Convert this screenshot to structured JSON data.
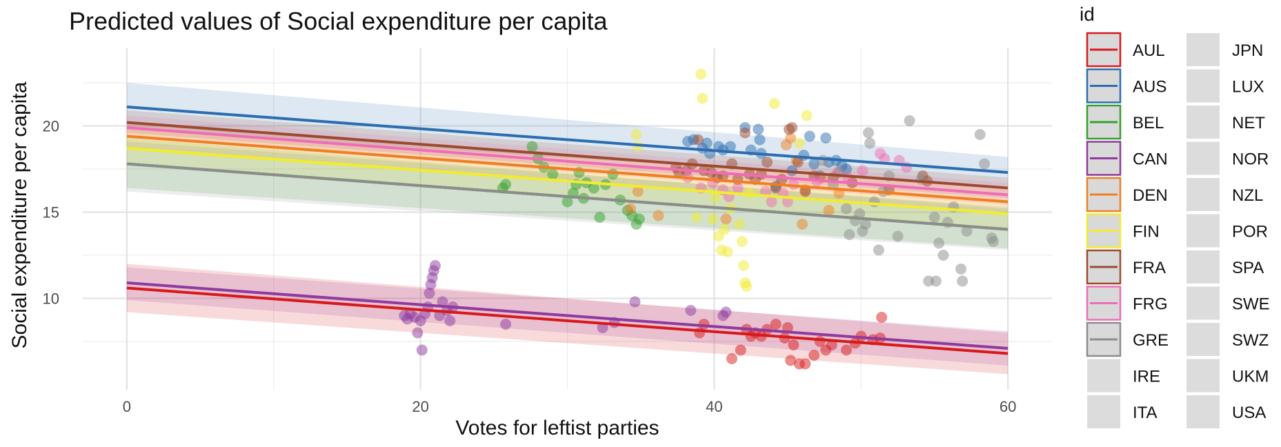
{
  "chart_data": {
    "type": "scatter",
    "title": "Predicted values of Social expenditure per capita",
    "xlabel": "Votes for leftist parties",
    "ylabel": "Social expenditure per capita",
    "xlim": [
      -3,
      63
    ],
    "ylim": [
      4.7,
      24.5
    ],
    "x_ticks": [
      0,
      20,
      40,
      60
    ],
    "y_ticks": [
      10,
      15,
      20
    ],
    "grid": true,
    "legend_title": "id",
    "legend_position": "right",
    "legend": [
      {
        "label": "AUL",
        "color": "#D7191C",
        "line": true
      },
      {
        "label": "AUS",
        "color": "#2C6DB0",
        "line": true
      },
      {
        "label": "BEL",
        "color": "#33A02C",
        "line": true
      },
      {
        "label": "CAN",
        "color": "#8E3A9E",
        "line": true
      },
      {
        "label": "DEN",
        "color": "#F07F22",
        "line": true
      },
      {
        "label": "FIN",
        "color": "#F2EC2E",
        "line": true
      },
      {
        "label": "FRA",
        "color": "#9C4A2E",
        "line": true
      },
      {
        "label": "FRG",
        "color": "#EE6DB4",
        "line": true
      },
      {
        "label": "GRE",
        "color": "#8C8C8C",
        "line": true
      },
      {
        "label": "IRE",
        "color": "#dcdcdc",
        "line": false
      },
      {
        "label": "ITA",
        "color": "#dcdcdc",
        "line": false
      },
      {
        "label": "JPN",
        "color": "#dcdcdc",
        "line": false
      },
      {
        "label": "LUX",
        "color": "#dcdcdc",
        "line": false
      },
      {
        "label": "NET",
        "color": "#dcdcdc",
        "line": false
      },
      {
        "label": "NOR",
        "color": "#dcdcdc",
        "line": false
      },
      {
        "label": "NZL",
        "color": "#dcdcdc",
        "line": false
      },
      {
        "label": "POR",
        "color": "#dcdcdc",
        "line": false
      },
      {
        "label": "SPA",
        "color": "#dcdcdc",
        "line": false
      },
      {
        "label": "SWE",
        "color": "#dcdcdc",
        "line": false
      },
      {
        "label": "SWZ",
        "color": "#dcdcdc",
        "line": false
      },
      {
        "label": "UKM",
        "color": "#dcdcdc",
        "line": false
      },
      {
        "label": "USA",
        "color": "#dcdcdc",
        "line": false
      }
    ],
    "series": [
      {
        "name": "AUL",
        "color": "#D7191C",
        "line": [
          [
            0,
            10.6
          ],
          [
            60,
            6.8
          ]
        ],
        "band": [
          [
            0,
            9.2,
            12.0
          ],
          [
            60,
            5.6,
            8.0
          ]
        ],
        "points": [
          [
            39,
            8.0
          ],
          [
            39.3,
            8.5
          ],
          [
            41.2,
            6.5
          ],
          [
            41.8,
            7.0
          ],
          [
            42.2,
            8.2
          ],
          [
            42.5,
            7.8
          ],
          [
            42.8,
            8.0
          ],
          [
            43.2,
            7.8
          ],
          [
            43.6,
            8.2
          ],
          [
            44.2,
            8.5
          ],
          [
            44.8,
            7.7
          ],
          [
            45.0,
            8.3
          ],
          [
            45.2,
            6.4
          ],
          [
            45.4,
            7.3
          ],
          [
            45.8,
            6.2
          ],
          [
            46.2,
            6.2
          ],
          [
            46.8,
            6.7
          ],
          [
            47.2,
            7.5
          ],
          [
            47.6,
            7.0
          ],
          [
            48.0,
            7.3
          ],
          [
            49.0,
            7.0
          ],
          [
            49.6,
            7.4
          ],
          [
            50.0,
            7.8
          ],
          [
            50.8,
            7.6
          ],
          [
            51.3,
            7.7
          ],
          [
            51.4,
            8.9
          ]
        ]
      },
      {
        "name": "AUS",
        "color": "#2C6DB0",
        "line": [
          [
            0,
            21.1
          ],
          [
            60,
            17.3
          ]
        ],
        "band": [
          [
            0,
            19.8,
            22.5
          ],
          [
            60,
            16.5,
            18.2
          ]
        ],
        "points": [
          [
            38.2,
            19.1
          ],
          [
            38.6,
            19.2
          ],
          [
            39.2,
            18.7
          ],
          [
            39.5,
            19.0
          ],
          [
            39.7,
            18.4
          ],
          [
            40.3,
            18.8
          ],
          [
            40.6,
            18.6
          ],
          [
            41.1,
            18.8
          ],
          [
            42.1,
            19.9
          ],
          [
            42.5,
            18.6
          ],
          [
            43.0,
            19.8
          ],
          [
            43.1,
            19.2
          ],
          [
            43.2,
            18.4
          ],
          [
            44.2,
            16.5
          ],
          [
            45.3,
            17.4
          ],
          [
            46.1,
            18.3
          ],
          [
            46.5,
            19.4
          ],
          [
            46.8,
            17.8
          ],
          [
            47.2,
            17.1
          ],
          [
            47.6,
            19.3
          ],
          [
            47.8,
            17.9
          ],
          [
            48.3,
            18.0
          ],
          [
            48.7,
            17.7
          ],
          [
            49.0,
            17.5
          ]
        ]
      },
      {
        "name": "BEL",
        "color": "#33A02C",
        "line": [
          [
            0,
            17.8
          ],
          [
            60,
            14.0
          ]
        ],
        "band": [
          [
            0,
            16.4,
            19.3
          ],
          [
            60,
            12.9,
            15.2
          ]
        ],
        "points": [
          [
            25.6,
            16.4
          ],
          [
            25.8,
            16.6
          ],
          [
            27.6,
            18.8
          ],
          [
            28.0,
            18.1
          ],
          [
            28.4,
            17.6
          ],
          [
            29.0,
            17.2
          ],
          [
            30.0,
            15.6
          ],
          [
            30.4,
            16.1
          ],
          [
            30.6,
            16.6
          ],
          [
            30.8,
            17.3
          ],
          [
            31.1,
            15.8
          ],
          [
            31.3,
            16.7
          ],
          [
            31.8,
            16.4
          ],
          [
            32.2,
            14.7
          ],
          [
            32.6,
            16.6
          ],
          [
            33.1,
            17.2
          ],
          [
            33.6,
            15.7
          ],
          [
            34.1,
            15.1
          ],
          [
            34.4,
            14.8
          ],
          [
            34.7,
            14.3
          ],
          [
            34.9,
            14.6
          ]
        ]
      },
      {
        "name": "CAN",
        "color": "#8E3A9E",
        "line": [
          [
            0,
            10.9
          ],
          [
            60,
            7.1
          ]
        ],
        "band": [
          [
            0,
            9.9,
            11.8
          ],
          [
            60,
            6.1,
            8.1
          ]
        ],
        "points": [
          [
            18.9,
            9.0
          ],
          [
            19.1,
            8.8
          ],
          [
            19.3,
            9.1
          ],
          [
            19.6,
            8.9
          ],
          [
            19.8,
            8.0
          ],
          [
            20.0,
            8.7
          ],
          [
            20.1,
            7.0
          ],
          [
            20.3,
            9.1
          ],
          [
            20.5,
            9.5
          ],
          [
            20.6,
            10.3
          ],
          [
            20.7,
            10.8
          ],
          [
            20.8,
            11.2
          ],
          [
            20.9,
            11.6
          ],
          [
            21.0,
            11.9
          ],
          [
            21.3,
            9.0
          ],
          [
            21.5,
            9.8
          ],
          [
            21.8,
            9.3
          ],
          [
            22.0,
            8.7
          ],
          [
            22.2,
            9.5
          ],
          [
            25.8,
            8.5
          ],
          [
            32.4,
            8.3
          ],
          [
            33.2,
            8.6
          ],
          [
            34.6,
            9.8
          ],
          [
            38.4,
            9.3
          ],
          [
            40.6,
            9.0
          ],
          [
            40.8,
            9.2
          ]
        ]
      },
      {
        "name": "DEN",
        "color": "#F07F22",
        "line": [
          [
            0,
            19.4
          ],
          [
            60,
            15.6
          ]
        ],
        "band": [
          [
            0,
            18.7,
            20.2
          ],
          [
            60,
            15.0,
            16.3
          ]
        ],
        "points": [
          [
            34.3,
            15.2
          ],
          [
            34.8,
            16.2
          ],
          [
            36.2,
            14.8
          ],
          [
            40.8,
            14.6
          ],
          [
            44.9,
            18.9
          ],
          [
            45.2,
            19.3
          ],
          [
            45.6,
            18.0
          ],
          [
            46.0,
            14.3
          ],
          [
            46.2,
            16.3
          ],
          [
            47.3,
            17.0
          ],
          [
            47.8,
            15.1
          ],
          [
            48.5,
            16.1
          ]
        ]
      },
      {
        "name": "FIN",
        "color": "#F2EC2E",
        "line": [
          [
            0,
            18.7
          ],
          [
            60,
            14.9
          ]
        ],
        "band": [
          [
            0,
            17.8,
            19.8
          ],
          [
            60,
            13.9,
            15.8
          ]
        ],
        "points": [
          [
            34.7,
            19.5
          ],
          [
            34.8,
            18.8
          ],
          [
            38.8,
            14.7
          ],
          [
            39.1,
            23.0
          ],
          [
            39.2,
            21.6
          ],
          [
            39.9,
            14.6
          ],
          [
            40.1,
            15.9
          ],
          [
            40.3,
            13.6
          ],
          [
            40.5,
            12.8
          ],
          [
            40.7,
            14.0
          ],
          [
            40.9,
            12.7
          ],
          [
            41.1,
            15.2
          ],
          [
            41.7,
            14.3
          ],
          [
            41.9,
            13.3
          ],
          [
            42.0,
            11.9
          ],
          [
            42.1,
            10.9
          ],
          [
            42.2,
            10.7
          ],
          [
            42.4,
            16.1
          ],
          [
            44.1,
            21.3
          ],
          [
            45.8,
            19.0
          ],
          [
            46.3,
            20.6
          ]
        ]
      },
      {
        "name": "FRA",
        "color": "#9C4A2E",
        "line": [
          [
            0,
            20.2
          ],
          [
            60,
            16.4
          ]
        ],
        "band": [
          [
            0,
            19.6,
            20.9
          ],
          [
            60,
            15.8,
            17.0
          ]
        ],
        "points": [
          [
            37.4,
            17.6
          ],
          [
            37.6,
            17.3
          ],
          [
            38.1,
            17.4
          ],
          [
            38.5,
            17.8
          ],
          [
            38.9,
            19.2
          ],
          [
            39.3,
            17.4
          ],
          [
            39.8,
            17.3
          ],
          [
            40.2,
            17.0
          ],
          [
            40.6,
            17.1
          ],
          [
            41.2,
            17.8
          ],
          [
            41.6,
            16.9
          ],
          [
            42.1,
            19.6
          ],
          [
            42.4,
            17.2
          ],
          [
            42.8,
            16.9
          ],
          [
            43.2,
            17.2
          ],
          [
            43.6,
            17.9
          ],
          [
            44.2,
            16.4
          ],
          [
            44.6,
            16.9
          ],
          [
            45.1,
            19.8
          ],
          [
            45.3,
            19.9
          ],
          [
            45.7,
            17.9
          ],
          [
            46.2,
            16.2
          ],
          [
            46.8,
            17.1
          ],
          [
            48.1,
            17.0
          ],
          [
            49.4,
            16.7
          ],
          [
            51.9,
            16.3
          ],
          [
            54.2,
            17.1
          ],
          [
            54.5,
            16.8
          ]
        ]
      },
      {
        "name": "FRG",
        "color": "#EE6DB4",
        "line": [
          [
            0,
            19.9
          ],
          [
            60,
            16.0
          ]
        ],
        "band": [
          [
            0,
            19.3,
            20.6
          ],
          [
            60,
            15.4,
            16.7
          ]
        ],
        "points": [
          [
            38.2,
            17.0
          ],
          [
            39.1,
            16.4
          ],
          [
            39.9,
            16.7
          ],
          [
            40.6,
            16.3
          ],
          [
            41.0,
            15.9
          ],
          [
            41.6,
            16.4
          ],
          [
            43.5,
            16.2
          ],
          [
            43.9,
            15.6
          ],
          [
            44.7,
            16.1
          ],
          [
            45.0,
            15.6
          ],
          [
            45.4,
            16.6
          ],
          [
            47.0,
            16.8
          ],
          [
            48.4,
            17.3
          ],
          [
            49.1,
            17.0
          ],
          [
            50.1,
            17.4
          ],
          [
            51.3,
            18.4
          ],
          [
            51.6,
            18.1
          ],
          [
            52.6,
            18.0
          ],
          [
            53.1,
            17.6
          ]
        ]
      },
      {
        "name": "GRE",
        "color": "#8C8C8C",
        "line": [
          [
            0,
            17.8
          ],
          [
            60,
            14.0
          ]
        ],
        "band": [
          [
            0,
            16.2,
            19.1
          ],
          [
            60,
            12.8,
            15.3
          ]
        ],
        "points": [
          [
            47.4,
            18.0
          ],
          [
            48.1,
            16.6
          ],
          [
            48.5,
            17.3
          ],
          [
            49.0,
            15.2
          ],
          [
            49.2,
            13.7
          ],
          [
            49.6,
            14.5
          ],
          [
            49.9,
            14.9
          ],
          [
            50.1,
            13.9
          ],
          [
            50.3,
            14.3
          ],
          [
            50.5,
            19.6
          ],
          [
            50.6,
            19.0
          ],
          [
            50.9,
            15.6
          ],
          [
            51.2,
            12.8
          ],
          [
            51.5,
            16.2
          ],
          [
            51.9,
            17.1
          ],
          [
            52.5,
            13.6
          ],
          [
            53.3,
            20.3
          ],
          [
            54.1,
            16.9
          ],
          [
            54.6,
            11.0
          ],
          [
            55.0,
            14.7
          ],
          [
            55.1,
            11.0
          ],
          [
            55.3,
            13.2
          ],
          [
            55.6,
            12.5
          ],
          [
            55.9,
            14.4
          ],
          [
            56.3,
            15.3
          ],
          [
            56.8,
            11.7
          ],
          [
            56.9,
            11.0
          ],
          [
            57.2,
            13.9
          ],
          [
            58.1,
            19.5
          ],
          [
            58.4,
            17.8
          ],
          [
            58.9,
            13.5
          ],
          [
            59.0,
            13.3
          ]
        ]
      }
    ]
  }
}
